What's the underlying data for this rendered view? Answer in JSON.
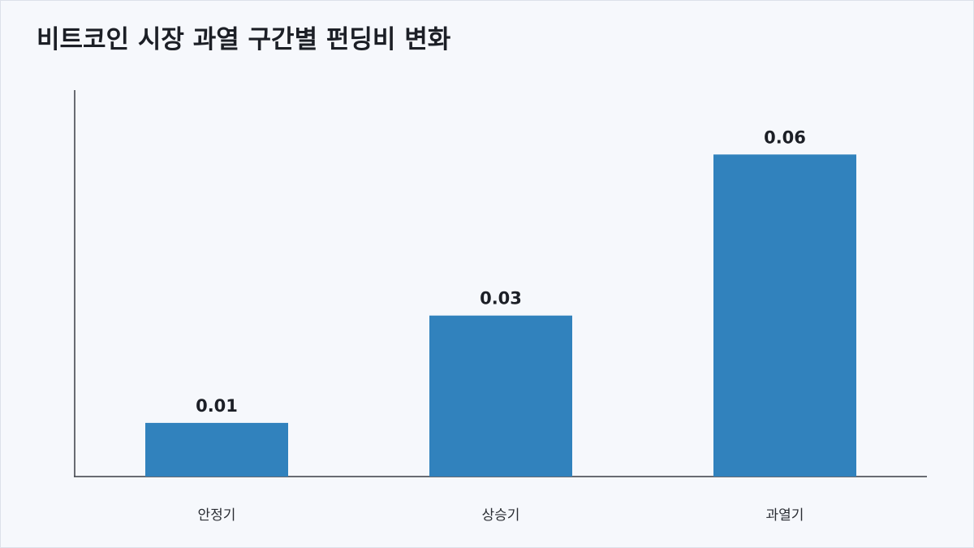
{
  "chart_data": {
    "type": "bar",
    "title": "비트코인 시장 과열 구간별 펀딩비 변화",
    "categories": [
      "안정기",
      "상승기",
      "과열기"
    ],
    "values": [
      0.01,
      0.03,
      0.06
    ],
    "value_labels": [
      "0.01",
      "0.03",
      "0.06"
    ],
    "xlabel": "",
    "ylabel": "",
    "ylim": [
      0,
      0.072
    ],
    "grid": false,
    "legend": "none",
    "bar_color": "#3182bd"
  }
}
